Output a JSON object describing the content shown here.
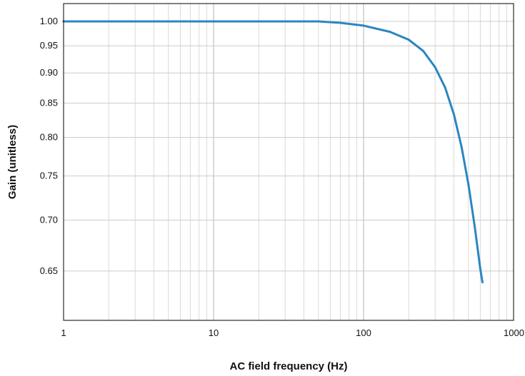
{
  "chart_data": {
    "type": "line",
    "xlabel": "AC field frequency (Hz)",
    "ylabel": "Gain (unitless)",
    "x_scale": "log",
    "y_scale": "reciprocal",
    "xlim": [
      1,
      1000
    ],
    "ylim": [
      0.608,
      1.04
    ],
    "x_ticks": [
      {
        "value": 1,
        "label": "1"
      },
      {
        "value": 10,
        "label": "10"
      },
      {
        "value": 100,
        "label": "100"
      },
      {
        "value": 1000,
        "label": "1000"
      }
    ],
    "y_ticks": [
      {
        "value": 1.0,
        "label": "1.00"
      },
      {
        "value": 0.95,
        "label": "0.95"
      },
      {
        "value": 0.9,
        "label": "0.90"
      },
      {
        "value": 0.85,
        "label": "0.85"
      },
      {
        "value": 0.8,
        "label": "0.80"
      },
      {
        "value": 0.75,
        "label": "0.75"
      },
      {
        "value": 0.7,
        "label": "0.70"
      },
      {
        "value": 0.65,
        "label": "0.65"
      }
    ],
    "grid": true,
    "series": [
      {
        "color": "#2a86c0",
        "x": [
          1,
          10,
          20,
          50,
          70,
          100,
          150,
          200,
          250,
          300,
          350,
          400,
          450,
          500,
          550,
          600,
          620
        ],
        "y": [
          1.0,
          1.0,
          1.0,
          1.0,
          0.997,
          0.991,
          0.978,
          0.962,
          0.94,
          0.91,
          0.875,
          0.833,
          0.787,
          0.74,
          0.694,
          0.652,
          0.64
        ]
      }
    ]
  }
}
